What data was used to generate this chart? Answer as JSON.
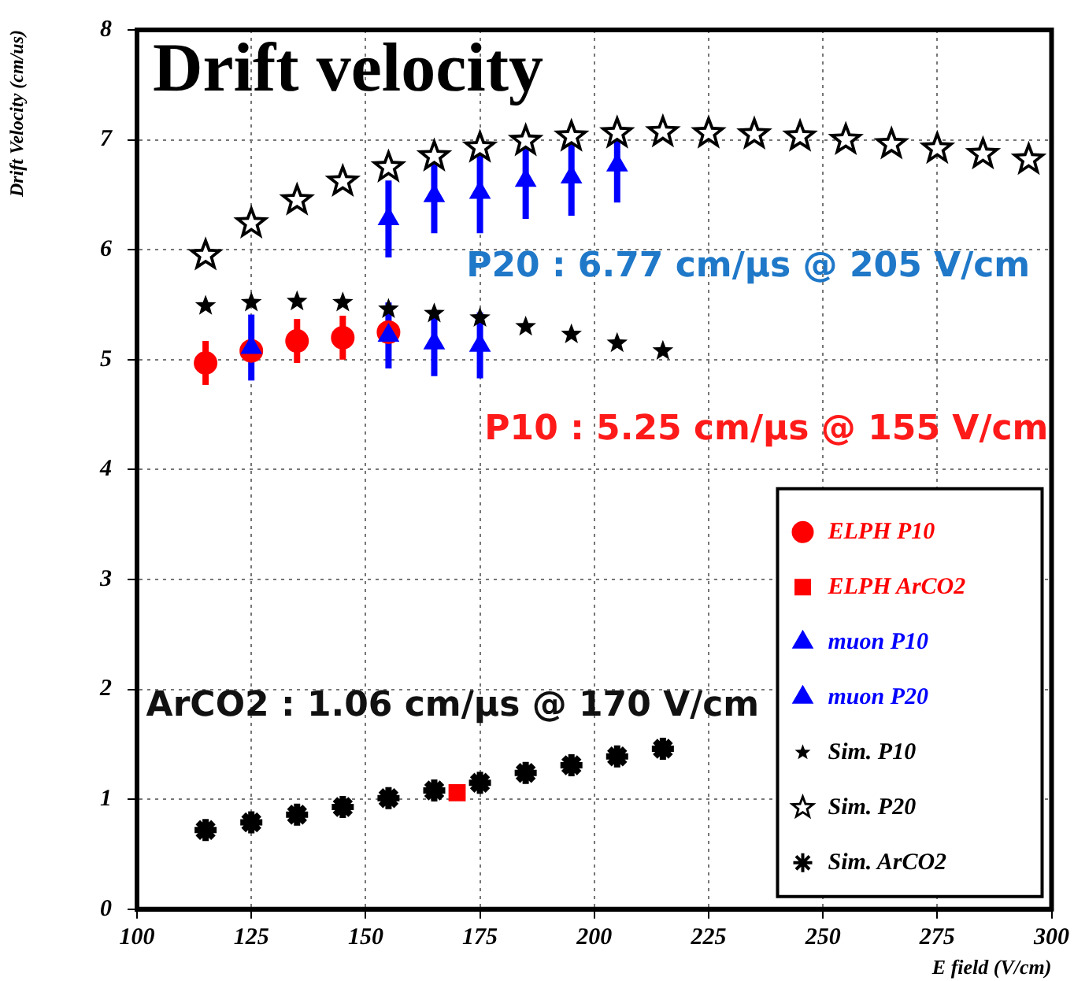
{
  "chart_data": {
    "type": "scatter",
    "title": "Drift velocity",
    "xlabel": "E field (V/cm)",
    "ylabel": "Drift Velocity (cm/us)",
    "xlim": [
      100,
      300
    ],
    "xticks": [
      100,
      125,
      150,
      175,
      200,
      225,
      250,
      275,
      300
    ],
    "ylim": [
      0,
      8
    ],
    "yticks": [
      0,
      1,
      2,
      3,
      4,
      5,
      6,
      7,
      8
    ],
    "grid": true,
    "legend": "bottom right",
    "annotations": [
      "P20 : 6.77 cm/μs @ 205 V/cm",
      "P10 : 5.25 cm/μs @ 155 V/cm",
      "ArCO2 : 1.06 cm/μs @ 170 V/cm"
    ],
    "series": [
      {
        "name": "ELPH P10",
        "color": "#ff0000",
        "marker": "circle",
        "x": [
          115,
          125,
          135,
          145,
          155
        ],
        "values": [
          4.97,
          5.08,
          5.17,
          5.2,
          5.25
        ],
        "errors": [
          0.2,
          0.1,
          0.2,
          0.2,
          0.1
        ]
      },
      {
        "name": "ELPH ArCO2",
        "color": "#ff0000",
        "marker": "square",
        "x": [
          170
        ],
        "values": [
          1.06
        ]
      },
      {
        "name": "muon P10",
        "color": "#0000ff",
        "marker": "triangle",
        "x": [
          125,
          155,
          165,
          175
        ],
        "values": [
          5.11,
          5.22,
          5.15,
          5.13
        ],
        "errors": [
          0.3,
          0.3,
          0.3,
          0.3
        ]
      },
      {
        "name": "muon P20",
        "color": "#0000ff",
        "marker": "triangle",
        "x": [
          155,
          165,
          175,
          185,
          195,
          205
        ],
        "values": [
          6.28,
          6.49,
          6.52,
          6.63,
          6.66,
          6.77
        ],
        "errors": [
          0.35,
          0.34,
          0.37,
          0.35,
          0.35,
          0.34
        ]
      },
      {
        "name": "Sim. P10",
        "color": "#000000",
        "marker": "star",
        "x": [
          115,
          125,
          135,
          145,
          155,
          165,
          175,
          185,
          195,
          205,
          215
        ],
        "values": [
          5.49,
          5.52,
          5.53,
          5.52,
          5.46,
          5.42,
          5.38,
          5.3,
          5.23,
          5.15,
          5.08
        ]
      },
      {
        "name": "Sim. P20",
        "color": "#000000",
        "marker": "star",
        "x": [
          115,
          125,
          135,
          145,
          155,
          165,
          175,
          185,
          195,
          205,
          215,
          225,
          235,
          245,
          255,
          265,
          275,
          285,
          295
        ],
        "values": [
          5.95,
          6.24,
          6.45,
          6.62,
          6.75,
          6.85,
          6.93,
          6.99,
          7.03,
          7.06,
          7.07,
          7.06,
          7.05,
          7.03,
          7.0,
          6.96,
          6.92,
          6.87,
          6.82
        ]
      },
      {
        "name": "Sim. ArCO2",
        "color": "#000000",
        "marker": "cross",
        "x": [
          115,
          125,
          135,
          145,
          155,
          165,
          175,
          185,
          195,
          205,
          215
        ],
        "values": [
          0.72,
          0.79,
          0.86,
          0.93,
          1.01,
          1.08,
          1.15,
          1.24,
          1.31,
          1.39,
          1.46
        ]
      }
    ]
  }
}
